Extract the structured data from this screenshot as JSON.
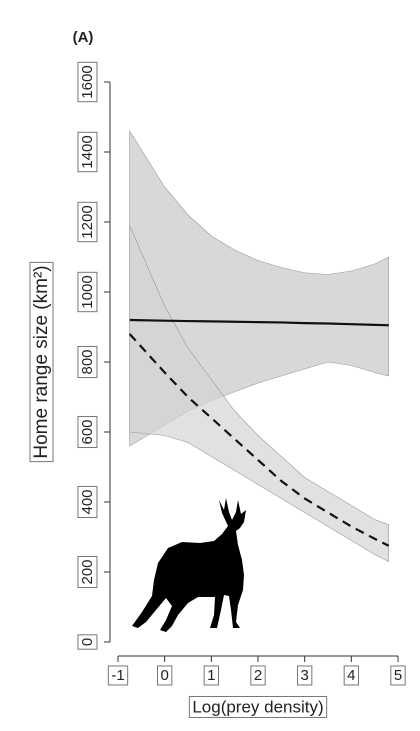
{
  "chart_data": {
    "type": "line",
    "panel_label": "(A)",
    "xlabel": "Log(prey density)",
    "ylabel": "Home range size (km²)",
    "x": [
      -0.75,
      0,
      0.5,
      1,
      1.5,
      2,
      2.5,
      3,
      3.5,
      4,
      4.5,
      4.8
    ],
    "series": [
      {
        "color": "#111111",
        "dashed": false,
        "band_color": "#c8c8c8",
        "values": [
          920,
          918,
          917,
          916,
          915,
          914,
          913,
          911,
          910,
          908,
          906,
          905
        ],
        "upper": [
          1460,
          1300,
          1220,
          1160,
          1120,
          1090,
          1070,
          1055,
          1050,
          1060,
          1080,
          1100
        ],
        "lower": [
          560,
          620,
          660,
          690,
          715,
          740,
          760,
          780,
          800,
          790,
          770,
          760
        ]
      },
      {
        "color": "#111111",
        "dashed": true,
        "band_color": "#d4d4d4",
        "values": [
          880,
          770,
          700,
          640,
          580,
          520,
          460,
          410,
          370,
          330,
          295,
          275
        ],
        "upper": [
          1190,
          960,
          840,
          750,
          660,
          590,
          530,
          470,
          430,
          390,
          350,
          335
        ],
        "lower": [
          600,
          590,
          570,
          530,
          490,
          450,
          410,
          370,
          330,
          290,
          250,
          230
        ]
      }
    ],
    "xlim": [
      -1,
      5
    ],
    "xticks": [
      -1,
      0,
      1,
      2,
      3,
      4,
      5
    ],
    "ylim": [
      0,
      1600
    ],
    "yticks": [
      0,
      200,
      400,
      600,
      800,
      1000,
      1200,
      1400,
      1600
    ],
    "grid": false
  }
}
